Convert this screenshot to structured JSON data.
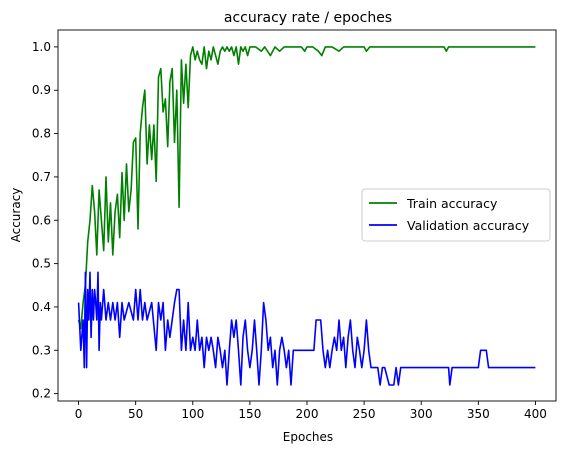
{
  "chart_data": {
    "type": "line",
    "title": "accuracy rate / epoches",
    "xlabel": "Epoches",
    "ylabel": "Accuracy",
    "xlim": [
      -18,
      418
    ],
    "ylim": [
      0.183,
      1.039
    ],
    "xticks": [
      0,
      50,
      100,
      150,
      200,
      250,
      300,
      350,
      400
    ],
    "yticks": [
      0.2,
      0.3,
      0.4,
      0.5,
      0.6,
      0.7,
      0.8,
      0.9,
      1.0
    ],
    "ytick_labels": [
      "0.2",
      "0.3",
      "0.4",
      "0.5",
      "0.6",
      "0.7",
      "0.8",
      "0.9",
      "1.0"
    ],
    "grid": false,
    "legend_position": "center-right",
    "series": [
      {
        "name": "Train accuracy",
        "color": "#008000",
        "points": [
          [
            0,
            0.37
          ],
          [
            2,
            0.35
          ],
          [
            4,
            0.41
          ],
          [
            6,
            0.45
          ],
          [
            8,
            0.55
          ],
          [
            10,
            0.6
          ],
          [
            12,
            0.68
          ],
          [
            14,
            0.62
          ],
          [
            16,
            0.52
          ],
          [
            18,
            0.67
          ],
          [
            20,
            0.6
          ],
          [
            22,
            0.53
          ],
          [
            24,
            0.7
          ],
          [
            26,
            0.55
          ],
          [
            28,
            0.64
          ],
          [
            30,
            0.52
          ],
          [
            32,
            0.62
          ],
          [
            34,
            0.66
          ],
          [
            36,
            0.56
          ],
          [
            38,
            0.71
          ],
          [
            40,
            0.6
          ],
          [
            42,
            0.73
          ],
          [
            44,
            0.62
          ],
          [
            46,
            0.67
          ],
          [
            48,
            0.78
          ],
          [
            50,
            0.79
          ],
          [
            52,
            0.58
          ],
          [
            54,
            0.8
          ],
          [
            56,
            0.86
          ],
          [
            58,
            0.9
          ],
          [
            60,
            0.73
          ],
          [
            62,
            0.82
          ],
          [
            64,
            0.74
          ],
          [
            66,
            0.82
          ],
          [
            68,
            0.69
          ],
          [
            70,
            0.93
          ],
          [
            72,
            0.95
          ],
          [
            74,
            0.85
          ],
          [
            76,
            0.88
          ],
          [
            78,
            0.77
          ],
          [
            80,
            0.92
          ],
          [
            82,
            0.95
          ],
          [
            84,
            0.78
          ],
          [
            86,
            0.9
          ],
          [
            88,
            0.63
          ],
          [
            90,
            0.97
          ],
          [
            92,
            0.87
          ],
          [
            94,
            0.96
          ],
          [
            96,
            0.86
          ],
          [
            98,
            0.98
          ],
          [
            100,
            1.0
          ],
          [
            102,
            0.97
          ],
          [
            104,
            0.99
          ],
          [
            106,
            0.97
          ],
          [
            108,
            0.96
          ],
          [
            110,
            1.0
          ],
          [
            112,
            0.95
          ],
          [
            114,
            0.99
          ],
          [
            116,
            0.97
          ],
          [
            118,
            1.0
          ],
          [
            120,
            0.98
          ],
          [
            122,
            0.96
          ],
          [
            124,
            0.99
          ],
          [
            126,
            1.0
          ],
          [
            128,
            0.99
          ],
          [
            130,
            1.0
          ],
          [
            132,
            0.99
          ],
          [
            134,
            1.0
          ],
          [
            136,
            0.98
          ],
          [
            138,
            1.0
          ],
          [
            140,
            0.96
          ],
          [
            142,
            1.0
          ],
          [
            144,
            0.99
          ],
          [
            146,
            1.0
          ],
          [
            148,
            0.98
          ],
          [
            150,
            1.0
          ],
          [
            155,
            1.0
          ],
          [
            160,
            0.99
          ],
          [
            163,
            1.0
          ],
          [
            168,
            0.98
          ],
          [
            172,
            1.0
          ],
          [
            176,
            0.99
          ],
          [
            180,
            1.0
          ],
          [
            185,
            1.0
          ],
          [
            190,
            1.0
          ],
          [
            195,
            1.0
          ],
          [
            198,
            0.99
          ],
          [
            200,
            1.0
          ],
          [
            205,
            1.0
          ],
          [
            210,
            0.99
          ],
          [
            213,
            0.98
          ],
          [
            216,
            1.0
          ],
          [
            222,
            1.0
          ],
          [
            228,
            0.99
          ],
          [
            232,
            1.0
          ],
          [
            240,
            1.0
          ],
          [
            250,
            1.0
          ],
          [
            252,
            0.99
          ],
          [
            255,
            1.0
          ],
          [
            270,
            1.0
          ],
          [
            300,
            1.0
          ],
          [
            320,
            1.0
          ],
          [
            322,
            0.99
          ],
          [
            324,
            1.0
          ],
          [
            350,
            1.0
          ],
          [
            400,
            1.0
          ]
        ]
      },
      {
        "name": "Validation accuracy",
        "color": "#0000ff",
        "points": [
          [
            0,
            0.41
          ],
          [
            2,
            0.3
          ],
          [
            4,
            0.37
          ],
          [
            5,
            0.26
          ],
          [
            6,
            0.48
          ],
          [
            7,
            0.26
          ],
          [
            8,
            0.44
          ],
          [
            9,
            0.37
          ],
          [
            10,
            0.48
          ],
          [
            11,
            0.33
          ],
          [
            12,
            0.44
          ],
          [
            13,
            0.37
          ],
          [
            14,
            0.44
          ],
          [
            15,
            0.41
          ],
          [
            16,
            0.37
          ],
          [
            17,
            0.48
          ],
          [
            18,
            0.3
          ],
          [
            19,
            0.41
          ],
          [
            20,
            0.37
          ],
          [
            22,
            0.44
          ],
          [
            24,
            0.37
          ],
          [
            26,
            0.41
          ],
          [
            28,
            0.37
          ],
          [
            30,
            0.41
          ],
          [
            32,
            0.37
          ],
          [
            34,
            0.41
          ],
          [
            36,
            0.33
          ],
          [
            38,
            0.41
          ],
          [
            40,
            0.37
          ],
          [
            44,
            0.41
          ],
          [
            48,
            0.37
          ],
          [
            50,
            0.44
          ],
          [
            52,
            0.37
          ],
          [
            54,
            0.44
          ],
          [
            56,
            0.37
          ],
          [
            58,
            0.41
          ],
          [
            60,
            0.37
          ],
          [
            64,
            0.41
          ],
          [
            68,
            0.3
          ],
          [
            70,
            0.41
          ],
          [
            72,
            0.37
          ],
          [
            74,
            0.41
          ],
          [
            76,
            0.3
          ],
          [
            78,
            0.37
          ],
          [
            80,
            0.33
          ],
          [
            82,
            0.37
          ],
          [
            84,
            0.41
          ],
          [
            86,
            0.44
          ],
          [
            88,
            0.44
          ],
          [
            90,
            0.3
          ],
          [
            92,
            0.37
          ],
          [
            94,
            0.3
          ],
          [
            96,
            0.41
          ],
          [
            98,
            0.3
          ],
          [
            100,
            0.33
          ],
          [
            102,
            0.3
          ],
          [
            104,
            0.37
          ],
          [
            106,
            0.3
          ],
          [
            108,
            0.33
          ],
          [
            110,
            0.26
          ],
          [
            112,
            0.33
          ],
          [
            114,
            0.3
          ],
          [
            116,
            0.33
          ],
          [
            118,
            0.3
          ],
          [
            120,
            0.26
          ],
          [
            122,
            0.33
          ],
          [
            124,
            0.3
          ],
          [
            126,
            0.26
          ],
          [
            128,
            0.3
          ],
          [
            130,
            0.22
          ],
          [
            132,
            0.3
          ],
          [
            134,
            0.37
          ],
          [
            136,
            0.33
          ],
          [
            138,
            0.37
          ],
          [
            140,
            0.3
          ],
          [
            142,
            0.22
          ],
          [
            144,
            0.33
          ],
          [
            146,
            0.37
          ],
          [
            148,
            0.3
          ],
          [
            150,
            0.26
          ],
          [
            152,
            0.3
          ],
          [
            154,
            0.37
          ],
          [
            156,
            0.3
          ],
          [
            158,
            0.22
          ],
          [
            160,
            0.3
          ],
          [
            162,
            0.41
          ],
          [
            164,
            0.37
          ],
          [
            166,
            0.3
          ],
          [
            168,
            0.33
          ],
          [
            170,
            0.26
          ],
          [
            172,
            0.3
          ],
          [
            174,
            0.22
          ],
          [
            176,
            0.3
          ],
          [
            178,
            0.33
          ],
          [
            180,
            0.3
          ],
          [
            182,
            0.26
          ],
          [
            184,
            0.3
          ],
          [
            186,
            0.22
          ],
          [
            188,
            0.3
          ],
          [
            200,
            0.3
          ],
          [
            206,
            0.3
          ],
          [
            208,
            0.37
          ],
          [
            212,
            0.37
          ],
          [
            214,
            0.3
          ],
          [
            216,
            0.26
          ],
          [
            218,
            0.3
          ],
          [
            220,
            0.26
          ],
          [
            222,
            0.3
          ],
          [
            224,
            0.33
          ],
          [
            226,
            0.3
          ],
          [
            228,
            0.37
          ],
          [
            230,
            0.3
          ],
          [
            232,
            0.33
          ],
          [
            234,
            0.26
          ],
          [
            236,
            0.33
          ],
          [
            238,
            0.37
          ],
          [
            240,
            0.3
          ],
          [
            242,
            0.26
          ],
          [
            244,
            0.33
          ],
          [
            246,
            0.3
          ],
          [
            248,
            0.26
          ],
          [
            250,
            0.3
          ],
          [
            252,
            0.37
          ],
          [
            254,
            0.3
          ],
          [
            256,
            0.26
          ],
          [
            258,
            0.26
          ],
          [
            262,
            0.26
          ],
          [
            264,
            0.22
          ],
          [
            266,
            0.26
          ],
          [
            268,
            0.26
          ],
          [
            272,
            0.22
          ],
          [
            276,
            0.22
          ],
          [
            278,
            0.26
          ],
          [
            280,
            0.22
          ],
          [
            282,
            0.26
          ],
          [
            290,
            0.26
          ],
          [
            300,
            0.26
          ],
          [
            324,
            0.26
          ],
          [
            325,
            0.22
          ],
          [
            327,
            0.26
          ],
          [
            350,
            0.26
          ],
          [
            352,
            0.3
          ],
          [
            357,
            0.3
          ],
          [
            359,
            0.26
          ],
          [
            400,
            0.26
          ]
        ]
      }
    ]
  }
}
